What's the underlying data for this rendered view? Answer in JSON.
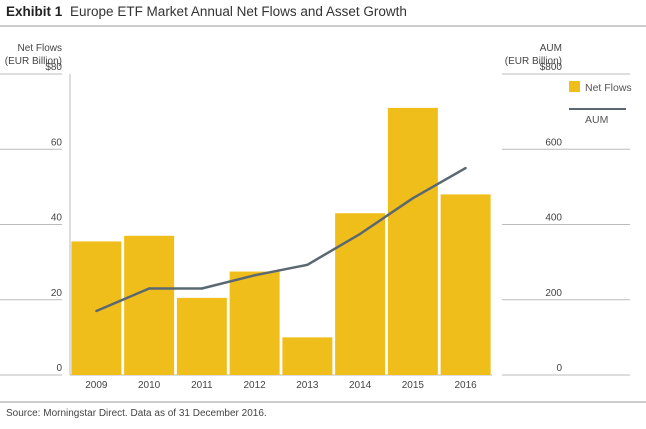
{
  "header": {
    "exhibit": "Exhibit 1",
    "title": "Europe ETF Market Annual Net Flows and Asset Growth"
  },
  "chart_data": {
    "type": "bar",
    "categories": [
      "2009",
      "2010",
      "2011",
      "2012",
      "2013",
      "2014",
      "2015",
      "2016"
    ],
    "series": [
      {
        "name": "Net Flows",
        "type": "bar",
        "axis": "left",
        "color": "#F0BE1B",
        "values": [
          35.5,
          37,
          20.5,
          27.5,
          10,
          43,
          71,
          48
        ]
      },
      {
        "name": "AUM",
        "type": "line",
        "axis": "right",
        "color": "#5A6872",
        "values": [
          170,
          230,
          230,
          265,
          293,
          375,
          470,
          550
        ]
      }
    ],
    "y_left": {
      "label_line1": "Net Flows",
      "label_line2": "(EUR Billion)",
      "range": [
        0,
        80
      ],
      "ticks": [
        "0",
        "20",
        "40",
        "60",
        "$80"
      ]
    },
    "y_right": {
      "label_line1": "AUM",
      "label_line2": "(EUR Billion)",
      "range": [
        0,
        800
      ],
      "ticks": [
        "0",
        "200",
        "400",
        "600",
        "$800"
      ]
    },
    "grid": true,
    "legend_position": "top-right"
  },
  "footer": {
    "source": "Source: Morningstar Direct. Data as of 31 December 2016."
  }
}
